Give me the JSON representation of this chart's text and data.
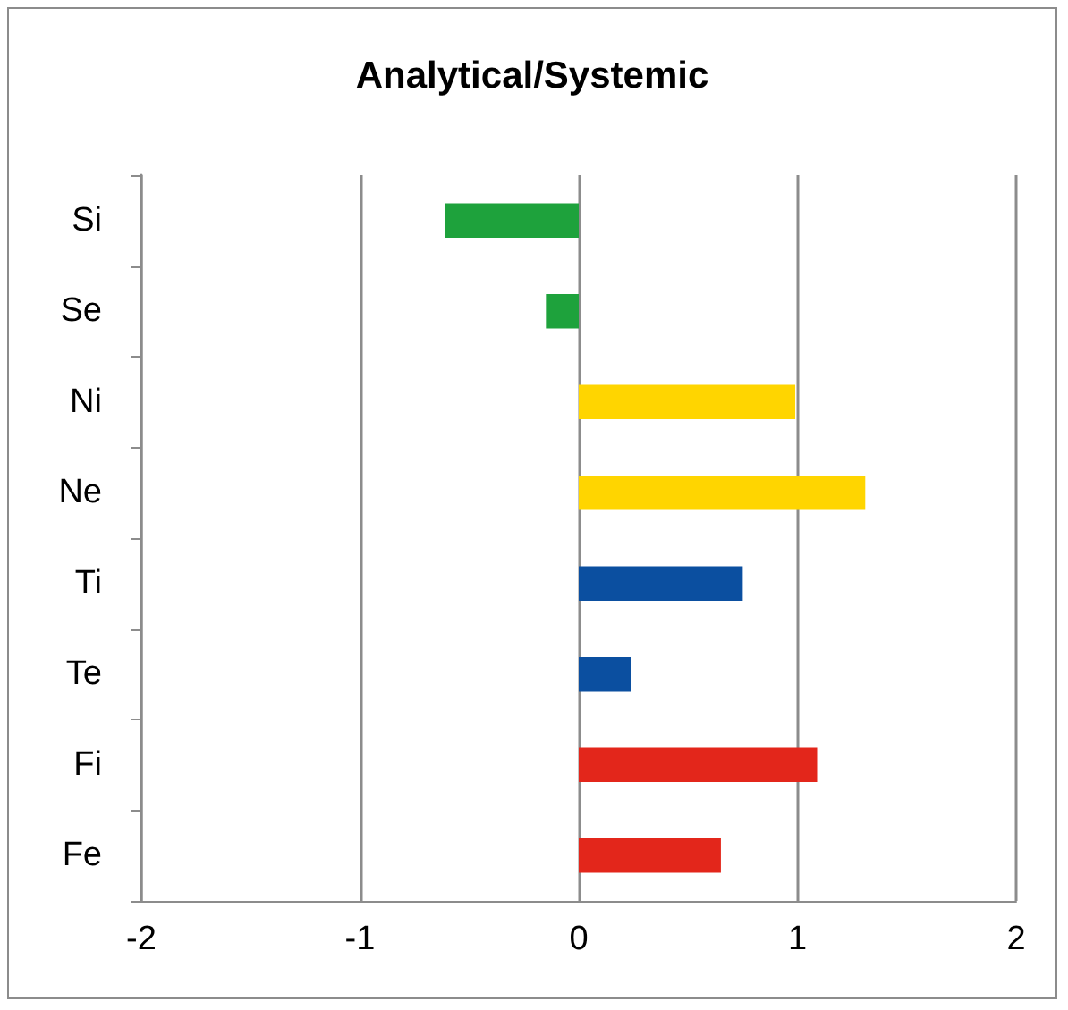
{
  "chart_data": {
    "type": "bar",
    "orientation": "horizontal",
    "title": "Analytical/Systemic",
    "categories": [
      "Si",
      "Se",
      "Ni",
      "Ne",
      "Ti",
      "Te",
      "Fi",
      "Fe"
    ],
    "values": [
      -0.61,
      -0.15,
      0.99,
      1.31,
      0.75,
      0.24,
      1.09,
      0.65
    ],
    "colors": [
      "#1ea23c",
      "#1ea23c",
      "#ffd500",
      "#ffd500",
      "#0b4fa0",
      "#0b4fa0",
      "#e3261b",
      "#e3261b"
    ],
    "xlim": [
      -2,
      2
    ],
    "xticks": [
      -2,
      -1,
      0,
      1,
      2
    ],
    "grid": "x"
  }
}
